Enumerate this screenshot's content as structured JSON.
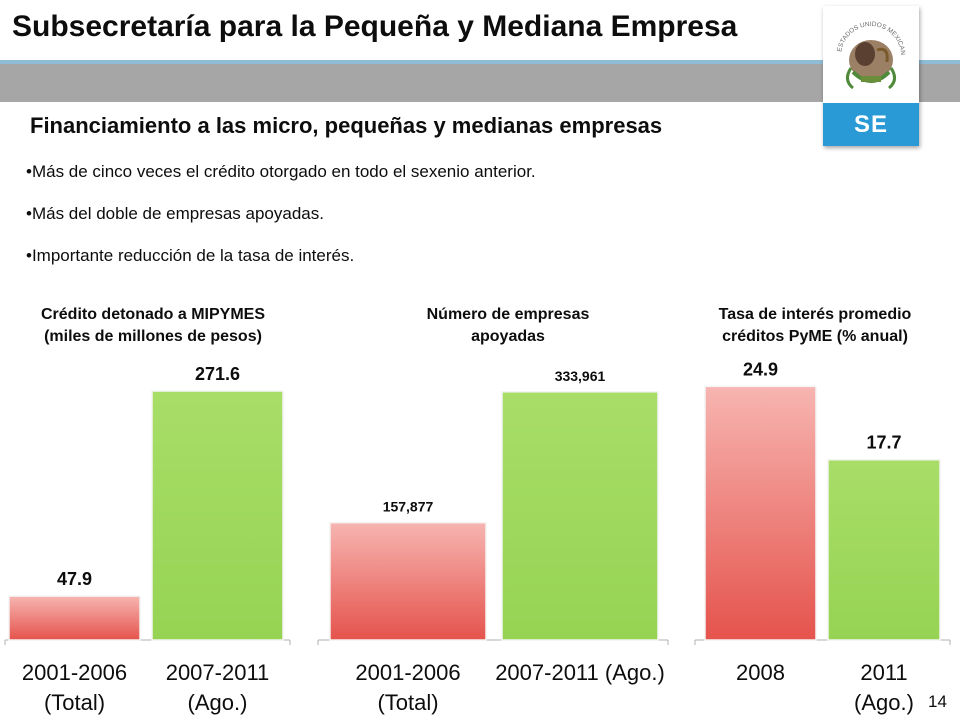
{
  "header": {
    "title": "Subsecretaría para la Pequeña y Mediana Empresa",
    "logo_text": "SE",
    "seal_text": "ESTADOS UNIDOS MEXICANOS"
  },
  "content": {
    "subtitle": "Financiamiento a las micro, pequeñas y medianas empresas",
    "bullets": [
      "•Más de cinco veces el crédito otorgado en todo el sexenio anterior.",
      "•Más del doble de empresas apoyadas.",
      "•Importante reducción de la tasa de interés."
    ]
  },
  "colors": {
    "red_bar": "#e85a54",
    "green_bar": "#9fd85e",
    "header_band": "#a6a6a6",
    "logo_blue": "#2a9ad6"
  },
  "chart_data": [
    {
      "type": "bar",
      "title_lines": [
        "Crédito detonado a MIPYMES",
        "(miles de millones de pesos)"
      ],
      "categories": [
        [
          "2001-2006",
          "(Total)"
        ],
        [
          "2007-2011",
          "(Ago.)"
        ]
      ],
      "values": [
        47.9,
        271.6
      ],
      "value_labels": [
        "47.9",
        "271.6"
      ],
      "ylim": [
        0,
        300
      ],
      "bar_colors": [
        "red",
        "green"
      ]
    },
    {
      "type": "bar",
      "title_lines": [
        "Número de empresas",
        "apoyadas"
      ],
      "categories": [
        [
          "2001-2006",
          "(Total)"
        ],
        [
          "2007-2011 (Ago.)"
        ]
      ],
      "values": [
        157877,
        333961
      ],
      "value_labels": [
        "157,877",
        "333,961"
      ],
      "ylim": [
        0,
        370000
      ],
      "bar_colors": [
        "red",
        "green"
      ]
    },
    {
      "type": "bar",
      "title_lines": [
        "Tasa de interés promedio",
        "créditos PyME (% anual)"
      ],
      "categories": [
        [
          "2008"
        ],
        [
          "2011",
          "(Ago.)"
        ]
      ],
      "values": [
        24.9,
        17.7
      ],
      "value_labels": [
        "24.9",
        "17.7"
      ],
      "ylim": [
        0,
        27
      ],
      "bar_colors": [
        "red",
        "green"
      ]
    }
  ],
  "footer": {
    "page_number": "14"
  }
}
